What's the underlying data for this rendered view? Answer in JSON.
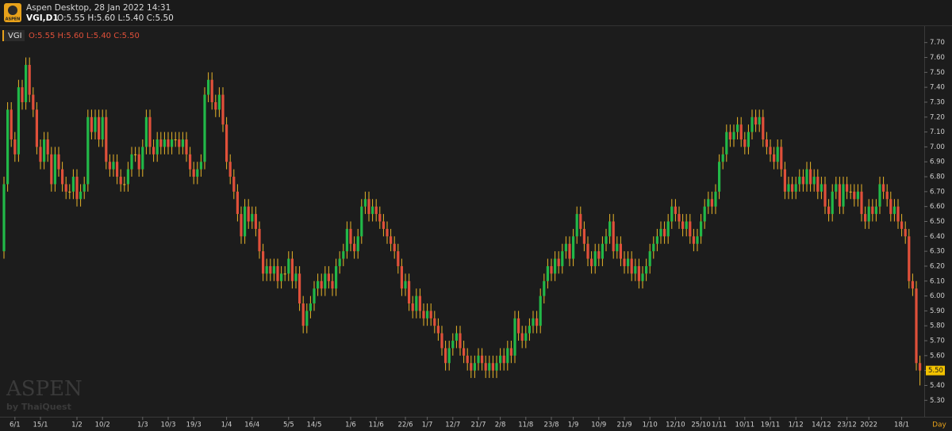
{
  "header": {
    "logo_text": "ASPEN",
    "app_title": "Aspen Desktop, 28 Jan 2022 14:31",
    "symbol": "VGI,D1",
    "ohlc": "O:5.55 H:5.60 L:5.40 C:5.50"
  },
  "legend": {
    "symbol": "VGI",
    "ohlc": "O:5.55 H:5.60 L:5.40 C:5.50"
  },
  "watermark": {
    "brand": "ASPEN",
    "by": "by ThaiQuest"
  },
  "chart_data": {
    "type": "candlestick",
    "x_label": "Day",
    "up_color": "#22b848",
    "down_color": "#e0503a",
    "wick_color": "#e8b52a",
    "ylim": [
      5.19,
      7.81
    ],
    "yticks": [
      {
        "value": 5.3,
        "label": "5.30"
      },
      {
        "value": 5.4,
        "label": "5.40"
      },
      {
        "value": 5.5,
        "label": "5.50"
      },
      {
        "value": 5.6,
        "label": "5.60"
      },
      {
        "value": 5.7,
        "label": "5.70"
      },
      {
        "value": 5.8,
        "label": "5.80"
      },
      {
        "value": 5.9,
        "label": "5.90"
      },
      {
        "value": 6.0,
        "label": "6.00"
      },
      {
        "value": 6.1,
        "label": "6.10"
      },
      {
        "value": 6.2,
        "label": "6.20"
      },
      {
        "value": 6.3,
        "label": "6.30"
      },
      {
        "value": 6.4,
        "label": "6.40"
      },
      {
        "value": 6.5,
        "label": "6.50"
      },
      {
        "value": 6.6,
        "label": "6.60"
      },
      {
        "value": 6.7,
        "label": "6.70"
      },
      {
        "value": 6.8,
        "label": "6.80"
      },
      {
        "value": 6.9,
        "label": "6.90"
      },
      {
        "value": 7.0,
        "label": "7.00"
      },
      {
        "value": 7.1,
        "label": "7.10"
      },
      {
        "value": 7.2,
        "label": "7.20"
      },
      {
        "value": 7.3,
        "label": "7.30"
      },
      {
        "value": 7.4,
        "label": "7.40"
      },
      {
        "value": 7.5,
        "label": "7.50"
      },
      {
        "value": 7.6,
        "label": "7.60"
      },
      {
        "value": 7.7,
        "label": "7.70"
      }
    ],
    "last_price": {
      "value": 5.5,
      "label": "5.50"
    },
    "categories": [
      null,
      null,
      null,
      "6/1",
      null,
      null,
      null,
      null,
      null,
      null,
      "15/1",
      null,
      null,
      null,
      null,
      null,
      null,
      null,
      null,
      null,
      "1/2",
      null,
      null,
      null,
      null,
      null,
      null,
      "10/2",
      null,
      null,
      null,
      null,
      null,
      null,
      null,
      null,
      null,
      null,
      "1/3",
      null,
      null,
      null,
      null,
      null,
      null,
      "10/3",
      null,
      null,
      null,
      null,
      null,
      null,
      "19/3",
      null,
      null,
      null,
      null,
      null,
      null,
      null,
      null,
      "1/4",
      null,
      null,
      null,
      null,
      null,
      null,
      "16/4",
      null,
      null,
      null,
      null,
      null,
      null,
      null,
      null,
      null,
      "5/5",
      null,
      null,
      null,
      null,
      null,
      null,
      "14/5",
      null,
      null,
      null,
      null,
      null,
      null,
      null,
      null,
      null,
      "1/6",
      null,
      null,
      null,
      null,
      null,
      null,
      "11/6",
      null,
      null,
      null,
      null,
      null,
      null,
      null,
      "22/6",
      null,
      null,
      null,
      null,
      null,
      "1/7",
      null,
      null,
      null,
      null,
      null,
      null,
      "12/7",
      null,
      null,
      null,
      null,
      null,
      null,
      "21/7",
      null,
      null,
      null,
      null,
      null,
      "2/8",
      null,
      null,
      null,
      null,
      null,
      null,
      "11/8",
      null,
      null,
      null,
      null,
      null,
      null,
      "23/8",
      null,
      null,
      null,
      null,
      null,
      "1/9",
      null,
      null,
      null,
      null,
      null,
      null,
      "10/9",
      null,
      null,
      null,
      null,
      null,
      null,
      "21/9",
      null,
      null,
      null,
      null,
      null,
      null,
      "1/10",
      null,
      null,
      null,
      null,
      null,
      null,
      "12/10",
      null,
      null,
      null,
      null,
      null,
      null,
      "25/10",
      null,
      null,
      null,
      null,
      "1/11",
      null,
      null,
      null,
      null,
      null,
      null,
      "10/11",
      null,
      null,
      null,
      null,
      null,
      null,
      "19/11",
      null,
      null,
      null,
      null,
      null,
      null,
      "1/12",
      null,
      null,
      null,
      null,
      null,
      null,
      "14/12",
      null,
      null,
      null,
      null,
      null,
      null,
      "23/12",
      null,
      null,
      null,
      null,
      null,
      "2022",
      null,
      null,
      null,
      null,
      null,
      null,
      null,
      null,
      "18/1",
      null,
      null,
      null,
      null,
      null
    ],
    "open": [
      6.3,
      6.75,
      7.25,
      7.05,
      6.95,
      7.4,
      7.3,
      7.55,
      7.35,
      7.25,
      7.0,
      6.9,
      7.05,
      6.95,
      6.75,
      6.95,
      6.85,
      6.75,
      6.7,
      6.7,
      6.8,
      6.65,
      6.7,
      6.75,
      7.2,
      7.1,
      7.2,
      7.05,
      7.2,
      6.9,
      6.85,
      6.9,
      6.8,
      6.75,
      6.75,
      6.85,
      6.95,
      6.95,
      6.85,
      7.0,
      7.2,
      7.0,
      6.95,
      7.05,
      7.0,
      7.05,
      7.0,
      7.05,
      7.05,
      7.0,
      7.05,
      6.95,
      6.85,
      6.8,
      6.85,
      6.9,
      7.35,
      7.45,
      7.3,
      7.25,
      7.35,
      7.15,
      6.9,
      6.8,
      6.7,
      6.55,
      6.4,
      6.6,
      6.5,
      6.55,
      6.45,
      6.3,
      6.15,
      6.2,
      6.15,
      6.2,
      6.1,
      6.15,
      6.15,
      6.25,
      6.1,
      6.15,
      5.95,
      5.8,
      5.9,
      5.95,
      6.05,
      6.1,
      6.05,
      6.15,
      6.1,
      6.05,
      6.2,
      6.25,
      6.3,
      6.45,
      6.35,
      6.3,
      6.4,
      6.6,
      6.65,
      6.55,
      6.6,
      6.55,
      6.5,
      6.45,
      6.4,
      6.35,
      6.3,
      6.2,
      6.05,
      6.1,
      5.95,
      5.9,
      6.0,
      5.9,
      5.85,
      5.9,
      5.85,
      5.8,
      5.75,
      5.65,
      5.55,
      5.65,
      5.7,
      5.75,
      5.65,
      5.6,
      5.55,
      5.5,
      5.55,
      5.6,
      5.55,
      5.5,
      5.55,
      5.5,
      5.55,
      5.6,
      5.55,
      5.65,
      5.6,
      5.85,
      5.75,
      5.7,
      5.75,
      5.8,
      5.85,
      5.8,
      6.0,
      6.1,
      6.2,
      6.15,
      6.25,
      6.2,
      6.3,
      6.35,
      6.25,
      6.4,
      6.55,
      6.45,
      6.35,
      6.25,
      6.2,
      6.3,
      6.25,
      6.35,
      6.4,
      6.5,
      6.3,
      6.35,
      6.25,
      6.2,
      6.25,
      6.15,
      6.2,
      6.1,
      6.15,
      6.2,
      6.3,
      6.35,
      6.4,
      6.45,
      6.4,
      6.5,
      6.6,
      6.55,
      6.5,
      6.45,
      6.5,
      6.4,
      6.35,
      6.4,
      6.5,
      6.6,
      6.65,
      6.6,
      6.7,
      6.9,
      6.95,
      7.1,
      7.05,
      7.1,
      7.15,
      7.05,
      7.0,
      7.1,
      7.2,
      7.15,
      7.2,
      7.05,
      7.0,
      6.95,
      6.9,
      7.0,
      6.85,
      6.7,
      6.75,
      6.7,
      6.75,
      6.8,
      6.75,
      6.85,
      6.75,
      6.8,
      6.7,
      6.75,
      6.6,
      6.55,
      6.7,
      6.75,
      6.6,
      6.75,
      6.7,
      6.7,
      6.65,
      6.7,
      6.55,
      6.5,
      6.6,
      6.55,
      6.6,
      6.75,
      6.7,
      6.65,
      6.55,
      6.6,
      6.5,
      6.45,
      6.4,
      6.1,
      6.05,
      5.55
    ],
    "high": [
      6.8,
      7.3,
      7.3,
      7.1,
      7.45,
      7.45,
      7.6,
      7.6,
      7.4,
      7.3,
      7.05,
      7.1,
      7.1,
      7.0,
      7.0,
      7.0,
      6.9,
      6.8,
      6.75,
      6.85,
      6.85,
      6.75,
      6.8,
      7.25,
      7.25,
      7.25,
      7.25,
      7.25,
      7.25,
      6.95,
      6.95,
      6.95,
      6.85,
      6.8,
      6.9,
      7.0,
      7.0,
      7.0,
      7.05,
      7.25,
      7.25,
      7.05,
      7.1,
      7.1,
      7.1,
      7.1,
      7.1,
      7.1,
      7.1,
      7.1,
      7.1,
      7.0,
      6.9,
      6.9,
      6.95,
      7.4,
      7.5,
      7.5,
      7.35,
      7.4,
      7.4,
      7.2,
      6.95,
      6.85,
      6.75,
      6.6,
      6.65,
      6.65,
      6.6,
      6.6,
      6.5,
      6.35,
      6.25,
      6.25,
      6.25,
      6.25,
      6.2,
      6.2,
      6.3,
      6.3,
      6.2,
      6.2,
      6.0,
      5.95,
      6.0,
      6.1,
      6.15,
      6.15,
      6.2,
      6.2,
      6.15,
      6.25,
      6.3,
      6.35,
      6.5,
      6.5,
      6.4,
      6.45,
      6.65,
      6.7,
      6.7,
      6.65,
      6.65,
      6.6,
      6.55,
      6.5,
      6.45,
      6.4,
      6.35,
      6.25,
      6.15,
      6.15,
      6.0,
      6.05,
      6.05,
      5.95,
      5.95,
      5.95,
      5.9,
      5.85,
      5.8,
      5.7,
      5.7,
      5.75,
      5.8,
      5.8,
      5.7,
      5.65,
      5.6,
      5.6,
      5.65,
      5.65,
      5.6,
      5.6,
      5.6,
      5.6,
      5.65,
      5.65,
      5.7,
      5.7,
      5.9,
      5.9,
      5.8,
      5.8,
      5.85,
      5.9,
      5.9,
      6.05,
      6.15,
      6.25,
      6.25,
      6.3,
      6.3,
      6.35,
      6.4,
      6.4,
      6.45,
      6.6,
      6.6,
      6.5,
      6.4,
      6.3,
      6.35,
      6.35,
      6.4,
      6.45,
      6.55,
      6.55,
      6.4,
      6.4,
      6.3,
      6.3,
      6.3,
      6.25,
      6.25,
      6.2,
      6.25,
      6.35,
      6.4,
      6.45,
      6.5,
      6.5,
      6.55,
      6.65,
      6.65,
      6.6,
      6.55,
      6.55,
      6.55,
      6.45,
      6.45,
      6.55,
      6.65,
      6.7,
      6.7,
      6.75,
      6.95,
      7.0,
      7.15,
      7.15,
      7.15,
      7.2,
      7.2,
      7.1,
      7.15,
      7.25,
      7.25,
      7.25,
      7.25,
      7.1,
      7.05,
      7.0,
      7.05,
      7.05,
      6.9,
      6.8,
      6.8,
      6.8,
      6.85,
      6.85,
      6.9,
      6.9,
      6.85,
      6.85,
      6.8,
      6.8,
      6.65,
      6.75,
      6.8,
      6.8,
      6.8,
      6.8,
      6.75,
      6.75,
      6.75,
      6.75,
      6.6,
      6.65,
      6.65,
      6.65,
      6.8,
      6.8,
      6.75,
      6.7,
      6.65,
      6.65,
      6.55,
      6.5,
      6.45,
      6.15,
      6.1,
      5.6
    ],
    "low": [
      6.25,
      6.7,
      7.0,
      6.9,
      6.9,
      7.25,
      7.25,
      7.3,
      7.2,
      6.95,
      6.85,
      6.85,
      6.9,
      6.7,
      6.7,
      6.8,
      6.7,
      6.65,
      6.65,
      6.65,
      6.6,
      6.6,
      6.65,
      6.7,
      7.05,
      7.05,
      7.0,
      7.0,
      6.85,
      6.8,
      6.8,
      6.75,
      6.7,
      6.7,
      6.7,
      6.8,
      6.9,
      6.8,
      6.8,
      6.95,
      6.95,
      6.9,
      6.9,
      6.95,
      6.95,
      6.95,
      6.95,
      7.0,
      6.95,
      6.95,
      6.9,
      6.8,
      6.75,
      6.75,
      6.8,
      6.85,
      7.3,
      7.25,
      7.2,
      7.2,
      7.1,
      6.85,
      6.75,
      6.65,
      6.5,
      6.35,
      6.35,
      6.45,
      6.45,
      6.4,
      6.25,
      6.1,
      6.1,
      6.1,
      6.1,
      6.05,
      6.05,
      6.1,
      6.1,
      6.05,
      6.05,
      5.9,
      5.75,
      5.75,
      5.85,
      5.9,
      6.0,
      6.0,
      6.0,
      6.05,
      6.0,
      6.0,
      6.15,
      6.2,
      6.25,
      6.3,
      6.25,
      6.25,
      6.35,
      6.55,
      6.5,
      6.5,
      6.5,
      6.45,
      6.4,
      6.35,
      6.3,
      6.25,
      6.15,
      6.0,
      6.0,
      5.9,
      5.85,
      5.85,
      5.85,
      5.8,
      5.8,
      5.8,
      5.75,
      5.7,
      5.6,
      5.5,
      5.5,
      5.6,
      5.65,
      5.6,
      5.55,
      5.5,
      5.45,
      5.45,
      5.5,
      5.5,
      5.45,
      5.45,
      5.45,
      5.45,
      5.5,
      5.5,
      5.5,
      5.55,
      5.55,
      5.7,
      5.65,
      5.65,
      5.7,
      5.75,
      5.75,
      5.75,
      5.95,
      6.05,
      6.1,
      6.1,
      6.15,
      6.15,
      6.25,
      6.2,
      6.2,
      6.35,
      6.4,
      6.3,
      6.2,
      6.15,
      6.15,
      6.2,
      6.2,
      6.3,
      6.35,
      6.25,
      6.25,
      6.2,
      6.15,
      6.15,
      6.1,
      6.1,
      6.05,
      6.05,
      6.1,
      6.15,
      6.25,
      6.3,
      6.35,
      6.35,
      6.35,
      6.45,
      6.5,
      6.45,
      6.4,
      6.4,
      6.35,
      6.3,
      6.3,
      6.35,
      6.45,
      6.55,
      6.55,
      6.55,
      6.65,
      6.85,
      6.9,
      7.0,
      7.0,
      7.05,
      7.0,
      6.95,
      6.95,
      7.05,
      7.1,
      7.1,
      7.0,
      6.95,
      6.9,
      6.85,
      6.85,
      6.8,
      6.65,
      6.65,
      6.65,
      6.65,
      6.7,
      6.7,
      6.7,
      6.7,
      6.7,
      6.65,
      6.65,
      6.55,
      6.5,
      6.5,
      6.65,
      6.55,
      6.55,
      6.65,
      6.65,
      6.6,
      6.6,
      6.5,
      6.45,
      6.45,
      6.5,
      6.5,
      6.55,
      6.65,
      6.6,
      6.5,
      6.5,
      6.45,
      6.4,
      6.35,
      6.05,
      6.0,
      5.5,
      5.4
    ],
    "close": [
      6.75,
      7.25,
      7.05,
      6.95,
      7.4,
      7.3,
      7.55,
      7.35,
      7.25,
      7.0,
      6.9,
      7.05,
      6.95,
      6.75,
      6.95,
      6.85,
      6.75,
      6.7,
      6.7,
      6.8,
      6.65,
      6.7,
      6.75,
      7.2,
      7.1,
      7.2,
      7.05,
      7.2,
      6.9,
      6.85,
      6.9,
      6.8,
      6.75,
      6.75,
      6.85,
      6.95,
      6.95,
      6.85,
      7.0,
      7.2,
      7.0,
      6.95,
      7.05,
      7.0,
      7.05,
      7.0,
      7.05,
      7.05,
      7.0,
      7.05,
      6.95,
      6.85,
      6.8,
      6.85,
      6.9,
      7.35,
      7.45,
      7.3,
      7.25,
      7.35,
      7.15,
      6.9,
      6.8,
      6.7,
      6.55,
      6.4,
      6.6,
      6.5,
      6.55,
      6.45,
      6.3,
      6.15,
      6.2,
      6.15,
      6.2,
      6.1,
      6.15,
      6.15,
      6.25,
      6.1,
      6.15,
      5.95,
      5.8,
      5.9,
      5.95,
      6.05,
      6.1,
      6.05,
      6.15,
      6.1,
      6.05,
      6.2,
      6.25,
      6.3,
      6.45,
      6.35,
      6.3,
      6.4,
      6.6,
      6.65,
      6.55,
      6.6,
      6.55,
      6.5,
      6.45,
      6.4,
      6.35,
      6.3,
      6.2,
      6.05,
      6.1,
      5.95,
      5.9,
      6.0,
      5.9,
      5.85,
      5.9,
      5.85,
      5.8,
      5.75,
      5.65,
      5.55,
      5.65,
      5.7,
      5.75,
      5.65,
      5.6,
      5.55,
      5.5,
      5.55,
      5.6,
      5.55,
      5.5,
      5.55,
      5.5,
      5.55,
      5.6,
      5.55,
      5.65,
      5.6,
      5.85,
      5.75,
      5.7,
      5.75,
      5.8,
      5.85,
      5.8,
      6.0,
      6.1,
      6.2,
      6.15,
      6.25,
      6.2,
      6.3,
      6.35,
      6.25,
      6.4,
      6.55,
      6.45,
      6.35,
      6.25,
      6.2,
      6.3,
      6.25,
      6.35,
      6.4,
      6.5,
      6.3,
      6.35,
      6.25,
      6.2,
      6.25,
      6.15,
      6.2,
      6.1,
      6.15,
      6.2,
      6.3,
      6.35,
      6.4,
      6.45,
      6.4,
      6.5,
      6.6,
      6.55,
      6.5,
      6.45,
      6.5,
      6.4,
      6.35,
      6.4,
      6.5,
      6.6,
      6.65,
      6.6,
      6.7,
      6.9,
      6.95,
      7.1,
      7.05,
      7.1,
      7.15,
      7.05,
      7.0,
      7.1,
      7.2,
      7.15,
      7.2,
      7.05,
      7.0,
      6.95,
      6.9,
      7.0,
      6.85,
      6.7,
      6.75,
      6.7,
      6.75,
      6.8,
      6.75,
      6.85,
      6.75,
      6.8,
      6.7,
      6.75,
      6.6,
      6.55,
      6.7,
      6.75,
      6.6,
      6.75,
      6.7,
      6.7,
      6.65,
      6.7,
      6.55,
      6.5,
      6.6,
      6.55,
      6.6,
      6.75,
      6.7,
      6.65,
      6.55,
      6.6,
      6.5,
      6.45,
      6.4,
      6.1,
      6.05,
      5.55,
      5.5
    ]
  }
}
